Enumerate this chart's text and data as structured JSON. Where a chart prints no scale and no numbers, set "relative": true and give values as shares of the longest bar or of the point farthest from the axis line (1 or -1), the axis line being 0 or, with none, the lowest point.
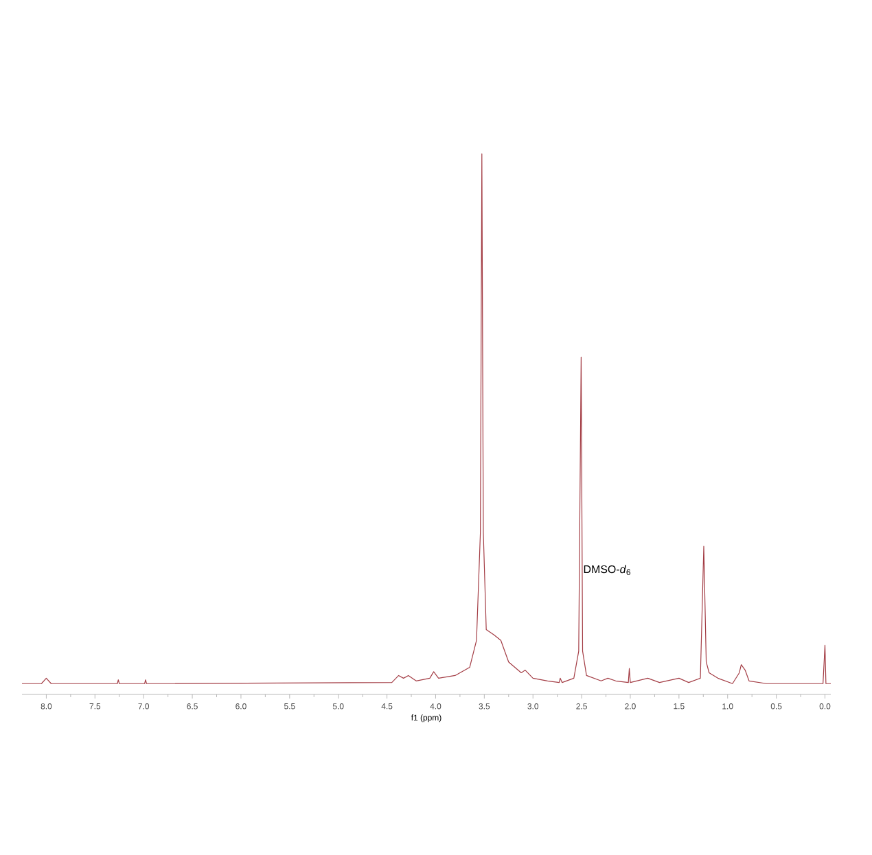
{
  "chart_data": {
    "type": "line",
    "relative": true,
    "xlabel": "f1 (ppm)",
    "color": "#a33c44",
    "xlim": [
      8.25,
      -0.06
    ],
    "xticks": [
      {
        "value": 8.0,
        "label": "8.0"
      },
      {
        "value": 7.75,
        "label": null
      },
      {
        "value": 7.5,
        "label": "7.5"
      },
      {
        "value": 7.25,
        "label": null
      },
      {
        "value": 7.0,
        "label": "7.0"
      },
      {
        "value": 6.75,
        "label": null
      },
      {
        "value": 6.5,
        "label": "6.5"
      },
      {
        "value": 6.25,
        "label": null
      },
      {
        "value": 6.0,
        "label": "6.0"
      },
      {
        "value": 5.75,
        "label": null
      },
      {
        "value": 5.5,
        "label": "5.5"
      },
      {
        "value": 5.25,
        "label": null
      },
      {
        "value": 5.0,
        "label": "5.0"
      },
      {
        "value": 4.75,
        "label": null
      },
      {
        "value": 4.5,
        "label": "4.5"
      },
      {
        "value": 4.25,
        "label": null
      },
      {
        "value": 4.0,
        "label": "4.0"
      },
      {
        "value": 3.75,
        "label": null
      },
      {
        "value": 3.5,
        "label": "3.5"
      },
      {
        "value": 3.25,
        "label": null
      },
      {
        "value": 3.0,
        "label": "3.0"
      },
      {
        "value": 2.75,
        "label": null
      },
      {
        "value": 2.5,
        "label": "2.5"
      },
      {
        "value": 2.25,
        "label": null
      },
      {
        "value": 2.0,
        "label": "2.0"
      },
      {
        "value": 1.75,
        "label": null
      },
      {
        "value": 1.5,
        "label": "1.5"
      },
      {
        "value": 1.25,
        "label": null
      },
      {
        "value": 1.0,
        "label": "1.0"
      },
      {
        "value": 0.75,
        "label": null
      },
      {
        "value": 0.5,
        "label": "0.5"
      },
      {
        "value": 0.25,
        "label": null
      },
      {
        "value": 0.0,
        "label": "0.0"
      }
    ],
    "x": [
      8.25,
      8.05,
      8.0,
      7.95,
      7.27,
      7.26,
      7.25,
      6.99,
      6.98,
      6.97,
      4.45,
      4.38,
      4.33,
      4.28,
      4.2,
      4.06,
      4.02,
      3.97,
      3.8,
      3.65,
      3.58,
      3.54,
      3.525,
      3.51,
      3.48,
      3.4,
      3.33,
      3.25,
      3.12,
      3.08,
      3.0,
      2.85,
      2.73,
      2.72,
      2.7,
      2.58,
      2.53,
      2.505,
      2.49,
      2.45,
      2.3,
      2.23,
      2.15,
      2.02,
      2.01,
      2.0,
      1.82,
      1.7,
      1.5,
      1.4,
      1.28,
      1.245,
      1.22,
      1.19,
      1.1,
      0.95,
      0.88,
      0.86,
      0.84,
      0.82,
      0.78,
      0.6,
      0.02,
      0.0,
      -0.01,
      -0.06
    ],
    "values": [
      0.02,
      0.02,
      0.03,
      0.02,
      0.02,
      0.027,
      0.02,
      0.02,
      0.027,
      0.02,
      0.022,
      0.035,
      0.03,
      0.035,
      0.025,
      0.03,
      0.042,
      0.03,
      0.035,
      0.05,
      0.1,
      0.3,
      1.0,
      0.3,
      0.12,
      0.11,
      0.1,
      0.06,
      0.04,
      0.045,
      0.03,
      0.025,
      0.022,
      0.03,
      0.022,
      0.03,
      0.08,
      0.624,
      0.08,
      0.035,
      0.025,
      0.03,
      0.025,
      0.022,
      0.048,
      0.022,
      0.03,
      0.022,
      0.03,
      0.022,
      0.03,
      0.274,
      0.06,
      0.04,
      0.03,
      0.02,
      0.04,
      0.055,
      0.05,
      0.045,
      0.025,
      0.02,
      0.02,
      0.091,
      0.02,
      0.02
    ],
    "annotations": [
      {
        "text": "DMSO-*d*$_{6}$",
        "x": 2.5,
        "y": 0.23
      }
    ]
  }
}
